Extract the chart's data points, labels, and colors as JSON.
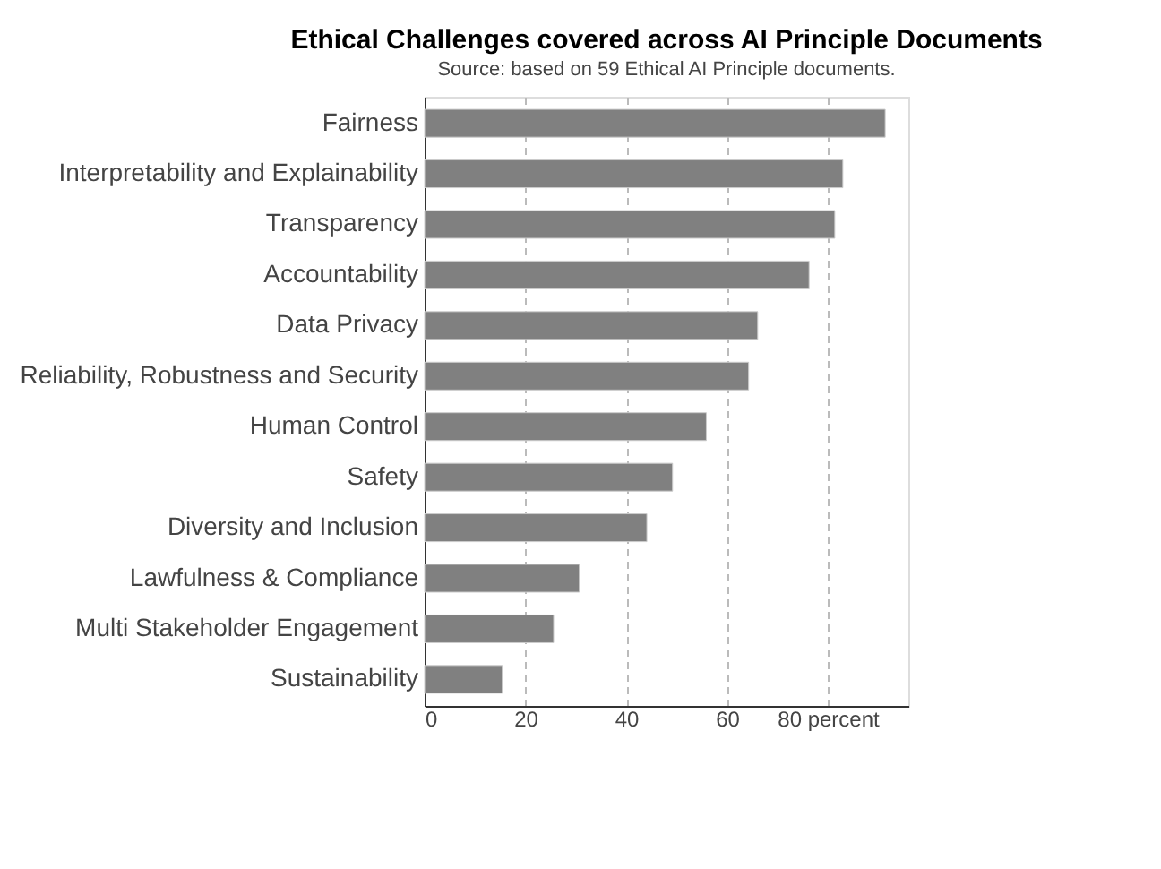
{
  "chart_data": {
    "type": "bar",
    "orientation": "horizontal",
    "title": "Ethical Challenges covered across AI Principle Documents",
    "subtitle": "Source: based on 59 Ethical AI Principle documents.",
    "categories": [
      "Fairness",
      "Interpretability and Explainability",
      "Transparency",
      "Accountability",
      "Data Privacy",
      "Reliability, Robustness and Security",
      "Human Control",
      "Safety",
      "Diversity and Inclusion",
      "Lawfulness & Compliance",
      "Multi Stakeholder Engagement",
      "Sustainability"
    ],
    "values": [
      91.4,
      83,
      81.4,
      76.3,
      66.1,
      64.3,
      55.9,
      49.2,
      44.1,
      30.7,
      25.6,
      15.4
    ],
    "color": "#808080",
    "xlim": [
      0,
      96
    ],
    "xticks": [
      0,
      20,
      40,
      60,
      {
        "value": 80,
        "label": "80 percent"
      }
    ],
    "grid": "x"
  }
}
